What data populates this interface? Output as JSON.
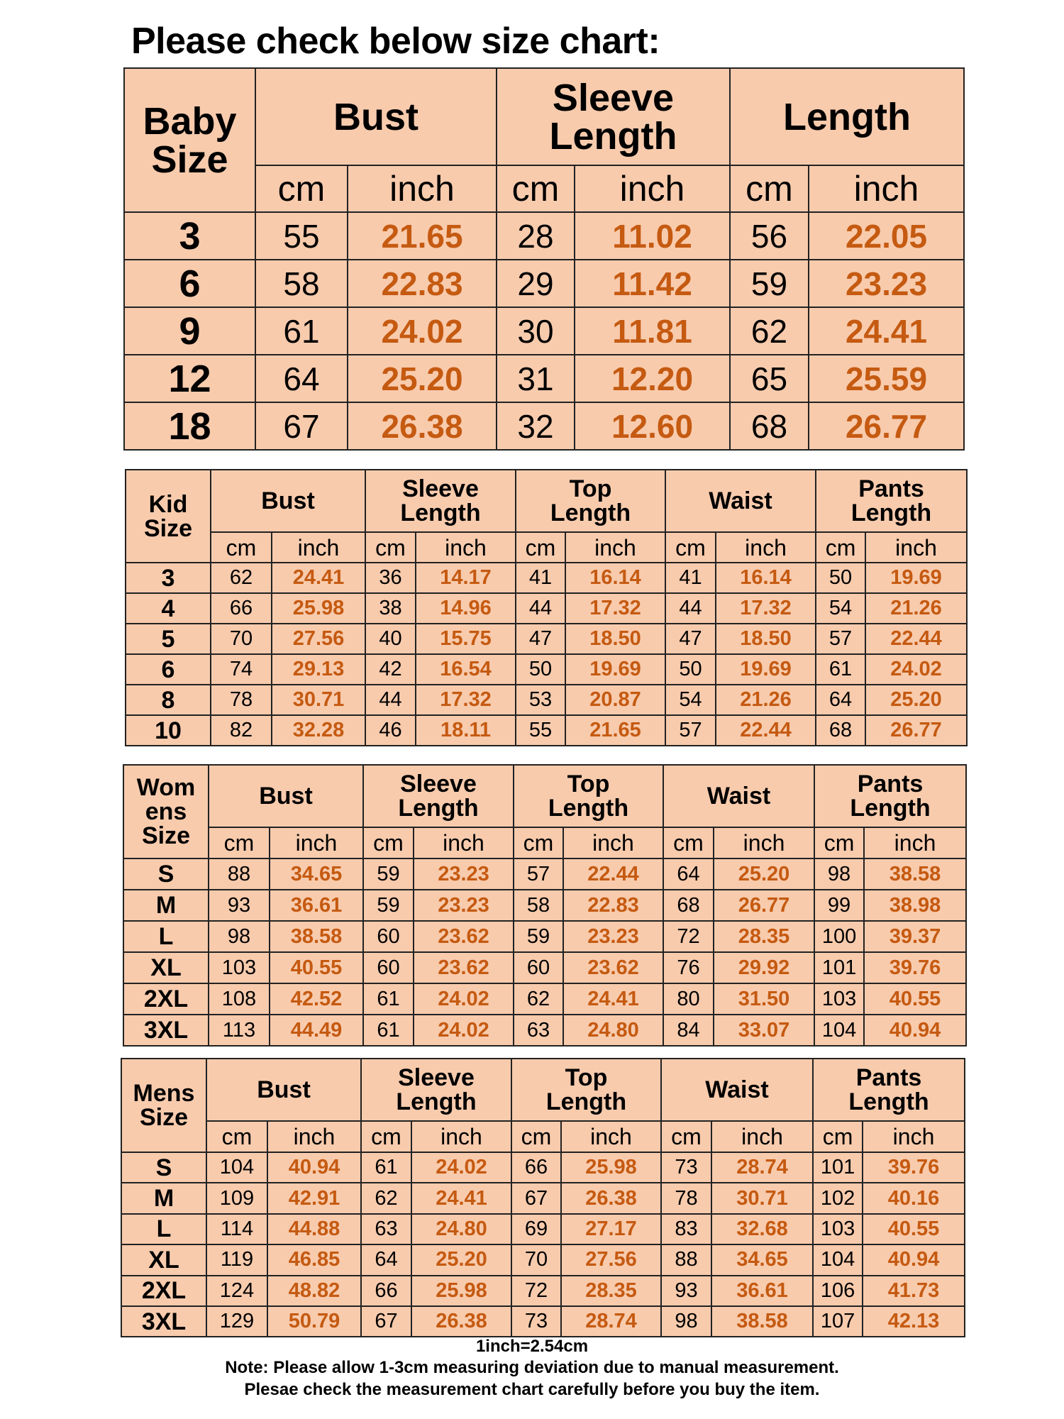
{
  "title": "Please check below size chart:",
  "colors": {
    "fill": "#f8cbad",
    "inch_text": "#c55a11",
    "border": "#222222"
  },
  "tables": [
    {
      "size_label": "Baby Size",
      "groups": [
        "Bust",
        "Sleeve Length",
        "Length"
      ],
      "units": [
        "cm",
        "inch"
      ],
      "rows": [
        [
          "3",
          "55",
          "21.65",
          "28",
          "11.02",
          "56",
          "22.05"
        ],
        [
          "6",
          "58",
          "22.83",
          "29",
          "11.42",
          "59",
          "23.23"
        ],
        [
          "9",
          "61",
          "24.02",
          "30",
          "11.81",
          "62",
          "24.41"
        ],
        [
          "12",
          "64",
          "25.20",
          "31",
          "12.20",
          "65",
          "25.59"
        ],
        [
          "18",
          "67",
          "26.38",
          "32",
          "12.60",
          "68",
          "26.77"
        ]
      ]
    },
    {
      "size_label": "Kid Size",
      "groups": [
        "Bust",
        "Sleeve Length",
        "Top Length",
        "Waist",
        "Pants Length"
      ],
      "units": [
        "cm",
        "inch"
      ],
      "rows": [
        [
          "3",
          "62",
          "24.41",
          "36",
          "14.17",
          "41",
          "16.14",
          "41",
          "16.14",
          "50",
          "19.69"
        ],
        [
          "4",
          "66",
          "25.98",
          "38",
          "14.96",
          "44",
          "17.32",
          "44",
          "17.32",
          "54",
          "21.26"
        ],
        [
          "5",
          "70",
          "27.56",
          "40",
          "15.75",
          "47",
          "18.50",
          "47",
          "18.50",
          "57",
          "22.44"
        ],
        [
          "6",
          "74",
          "29.13",
          "42",
          "16.54",
          "50",
          "19.69",
          "50",
          "19.69",
          "61",
          "24.02"
        ],
        [
          "8",
          "78",
          "30.71",
          "44",
          "17.32",
          "53",
          "20.87",
          "54",
          "21.26",
          "64",
          "25.20"
        ],
        [
          "10",
          "82",
          "32.28",
          "46",
          "18.11",
          "55",
          "21.65",
          "57",
          "22.44",
          "68",
          "26.77"
        ]
      ]
    },
    {
      "size_label": "Wom ens Size",
      "groups": [
        "Bust",
        "Sleeve Length",
        "Top Length",
        "Waist",
        "Pants Length"
      ],
      "units": [
        "cm",
        "inch"
      ],
      "rows": [
        [
          "S",
          "88",
          "34.65",
          "59",
          "23.23",
          "57",
          "22.44",
          "64",
          "25.20",
          "98",
          "38.58"
        ],
        [
          "M",
          "93",
          "36.61",
          "59",
          "23.23",
          "58",
          "22.83",
          "68",
          "26.77",
          "99",
          "38.98"
        ],
        [
          "L",
          "98",
          "38.58",
          "60",
          "23.62",
          "59",
          "23.23",
          "72",
          "28.35",
          "100",
          "39.37"
        ],
        [
          "XL",
          "103",
          "40.55",
          "60",
          "23.62",
          "60",
          "23.62",
          "76",
          "29.92",
          "101",
          "39.76"
        ],
        [
          "2XL",
          "108",
          "42.52",
          "61",
          "24.02",
          "62",
          "24.41",
          "80",
          "31.50",
          "103",
          "40.55"
        ],
        [
          "3XL",
          "113",
          "44.49",
          "61",
          "24.02",
          "63",
          "24.80",
          "84",
          "33.07",
          "104",
          "40.94"
        ]
      ]
    },
    {
      "size_label": "Mens Size",
      "groups": [
        "Bust",
        "Sleeve Length",
        "Top Length",
        "Waist",
        "Pants Length"
      ],
      "units": [
        "cm",
        "inch"
      ],
      "rows": [
        [
          "S",
          "104",
          "40.94",
          "61",
          "24.02",
          "66",
          "25.98",
          "73",
          "28.74",
          "101",
          "39.76"
        ],
        [
          "M",
          "109",
          "42.91",
          "62",
          "24.41",
          "67",
          "26.38",
          "78",
          "30.71",
          "102",
          "40.16"
        ],
        [
          "L",
          "114",
          "44.88",
          "63",
          "24.80",
          "69",
          "27.17",
          "83",
          "32.68",
          "103",
          "40.55"
        ],
        [
          "XL",
          "119",
          "46.85",
          "64",
          "25.20",
          "70",
          "27.56",
          "88",
          "34.65",
          "104",
          "40.94"
        ],
        [
          "2XL",
          "124",
          "48.82",
          "66",
          "25.98",
          "72",
          "28.35",
          "93",
          "36.61",
          "106",
          "41.73"
        ],
        [
          "3XL",
          "129",
          "50.79",
          "67",
          "26.38",
          "73",
          "28.74",
          "98",
          "38.58",
          "107",
          "42.13"
        ]
      ]
    }
  ],
  "notes": {
    "conversion": "1inch=2.54cm",
    "deviation": "Note: Please allow 1-3cm measuring deviation due to manual measurement.",
    "check": "Plesae check the measurement chart carefully before you buy the item."
  }
}
